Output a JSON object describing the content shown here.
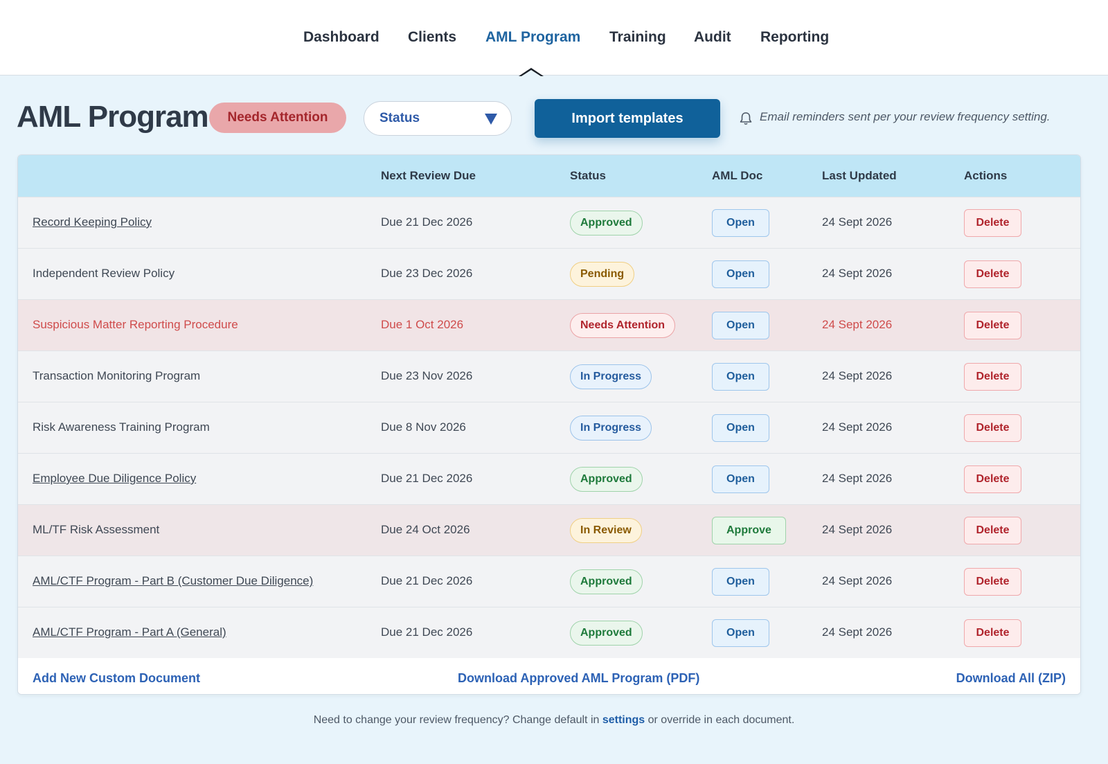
{
  "nav": {
    "items": [
      {
        "label": "Dashboard",
        "active": false
      },
      {
        "label": "Clients",
        "active": false
      },
      {
        "label": "AML Program",
        "active": true
      },
      {
        "label": "Training",
        "active": false
      },
      {
        "label": "Audit",
        "active": false
      },
      {
        "label": "Reporting",
        "active": false
      }
    ]
  },
  "header": {
    "title": "AML Program",
    "status_pill": "Needs Attention",
    "status_filter": "Status",
    "import_button": "Import templates",
    "reminder_note": "Email reminders sent per your review frequency setting."
  },
  "table": {
    "columns": [
      "",
      "Next Review Due",
      "Status",
      "AML Doc",
      "Last Updated",
      "Actions"
    ],
    "rows": [
      {
        "name": "Record Keeping Policy",
        "link": true,
        "due": "Due 21 Dec 2026",
        "status": "Approved",
        "status_kind": "approved",
        "doc": "Open",
        "doc_kind": "open",
        "updated": "24 Sept 2026",
        "action": "Delete",
        "highlight": ""
      },
      {
        "name": "Independent Review Policy",
        "link": false,
        "due": "Due 23 Dec 2026",
        "status": "Pending",
        "status_kind": "pending",
        "doc": "Open",
        "doc_kind": "open",
        "updated": "24 Sept 2026",
        "action": "Delete",
        "highlight": ""
      },
      {
        "name": "Suspicious Matter Reporting Procedure",
        "link": false,
        "due": "Due 1 Oct 2026",
        "status": "Needs Attention",
        "status_kind": "attention",
        "doc": "Open",
        "doc_kind": "open",
        "updated": "24 Sept 2026",
        "action": "Delete",
        "highlight": "alert"
      },
      {
        "name": "Transaction Monitoring Program",
        "link": false,
        "due": "Due 23 Nov 2026",
        "status": "In Progress",
        "status_kind": "progress",
        "doc": "Open",
        "doc_kind": "open",
        "updated": "24 Sept 2026",
        "action": "Delete",
        "highlight": ""
      },
      {
        "name": "Risk Awareness Training Program",
        "link": false,
        "due": "Due 8 Nov 2026",
        "status": "In Progress",
        "status_kind": "progress",
        "doc": "Open",
        "doc_kind": "open",
        "updated": "24 Sept 2026",
        "action": "Delete",
        "highlight": ""
      },
      {
        "name": "Employee Due Diligence Policy",
        "link": true,
        "due": "Due 21 Dec 2026",
        "status": "Approved",
        "status_kind": "approved",
        "doc": "Open",
        "doc_kind": "open",
        "updated": "24 Sept 2026",
        "action": "Delete",
        "highlight": ""
      },
      {
        "name": "ML/TF Risk Assessment",
        "link": false,
        "due": "Due 24 Oct 2026",
        "status": "In Review",
        "status_kind": "inreview",
        "doc": "Approve",
        "doc_kind": "approve",
        "updated": "24 Sept 2026",
        "action": "Delete",
        "highlight": "review"
      },
      {
        "name": "AML/CTF Program - Part B (Customer Due Diligence)",
        "link": true,
        "due": "Due 21 Dec 2026",
        "status": "Approved",
        "status_kind": "approved",
        "doc": "Open",
        "doc_kind": "open",
        "updated": "24 Sept 2026",
        "action": "Delete",
        "highlight": ""
      },
      {
        "name": "AML/CTF Program - Part A (General)",
        "link": true,
        "due": "Due 21 Dec 2026",
        "status": "Approved",
        "status_kind": "approved",
        "doc": "Open",
        "doc_kind": "open",
        "updated": "24 Sept 2026",
        "action": "Delete",
        "highlight": ""
      }
    ]
  },
  "footer_links": {
    "add": "Add New Custom Document",
    "download_pdf": "Download Approved AML Program (PDF)",
    "download_zip": "Download All (ZIP)"
  },
  "bottom_note": {
    "before": "Need to change your review frequency? Change default in ",
    "link": "settings",
    "after": " or override in each document."
  },
  "icons": {
    "bell": "bell-icon",
    "dropdown": "triangle-down-icon"
  },
  "colors": {
    "accent": "#10619a",
    "active_nav": "#1f64a0",
    "link": "#2d62b5",
    "header_bg": "#bfe6f6",
    "page_bg": "#e8f4fb"
  }
}
